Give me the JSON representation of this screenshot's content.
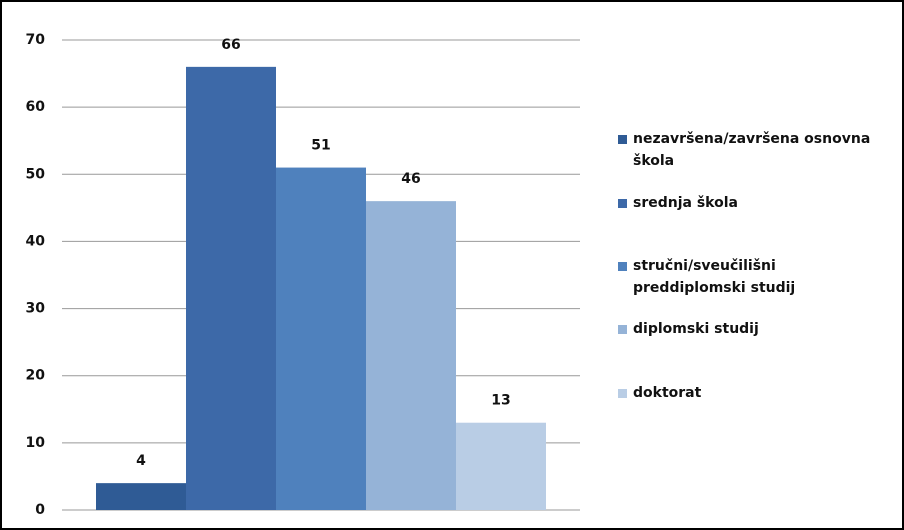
{
  "chart_data": {
    "type": "bar",
    "categories": [
      null
    ],
    "series": [
      {
        "name": "nezavršena/završena osnovna škola",
        "color": "#2f5b95",
        "values": [
          4
        ]
      },
      {
        "name": "srednja škola",
        "color": "#3d69a8",
        "values": [
          66
        ]
      },
      {
        "name": "stručni/sveučilišni preddiplomski studij",
        "color": "#4f81bd",
        "values": [
          51
        ]
      },
      {
        "name": "diplomski studij",
        "color": "#95b3d7",
        "values": [
          46
        ]
      },
      {
        "name": "doktorat",
        "color": "#b9cde5",
        "values": [
          13
        ]
      }
    ],
    "ylim": [
      0,
      70
    ],
    "yticks": [
      0,
      10,
      20,
      30,
      40,
      50,
      60,
      70
    ],
    "grid": true,
    "legend": "right"
  }
}
